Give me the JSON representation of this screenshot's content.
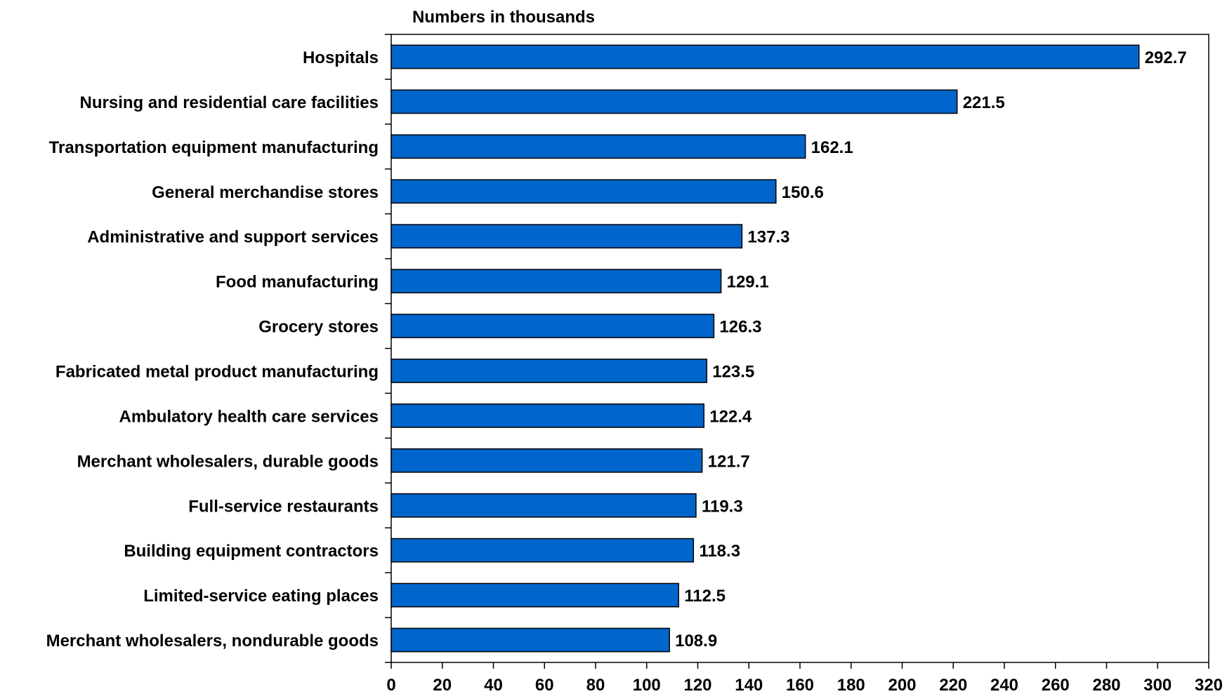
{
  "chart_data": {
    "type": "bar",
    "orientation": "horizontal",
    "title": "Numbers in thousands",
    "categories": [
      "Hospitals",
      "Nursing and residential care facilities",
      "Transportation equipment manufacturing",
      "General merchandise stores",
      "Administrative and support services",
      "Food manufacturing",
      "Grocery stores",
      "Fabricated metal product manufacturing",
      "Ambulatory health care services",
      "Merchant wholesalers, durable goods",
      "Full-service restaurants",
      "Building equipment contractors",
      "Limited-service eating places",
      "Merchant wholesalers, nondurable goods"
    ],
    "values": [
      292.7,
      221.5,
      162.1,
      150.6,
      137.3,
      129.1,
      126.3,
      123.5,
      122.4,
      121.7,
      119.3,
      118.3,
      112.5,
      108.9
    ],
    "value_labels": [
      "292.7",
      "221.5",
      "162.1",
      "150.6",
      "137.3",
      "129.1",
      "126.3",
      "123.5",
      "122.4",
      "121.7",
      "119.3",
      "118.3",
      "112.5",
      "108.9"
    ],
    "xlim": [
      0,
      320
    ],
    "xticks": [
      "0",
      "20",
      "40",
      "60",
      "80",
      "100",
      "120",
      "140",
      "160",
      "180",
      "200",
      "220",
      "240",
      "260",
      "280",
      "300",
      "320"
    ],
    "grid": false,
    "bar_color": "#0066CC",
    "bar_edge_color": "#000000"
  }
}
